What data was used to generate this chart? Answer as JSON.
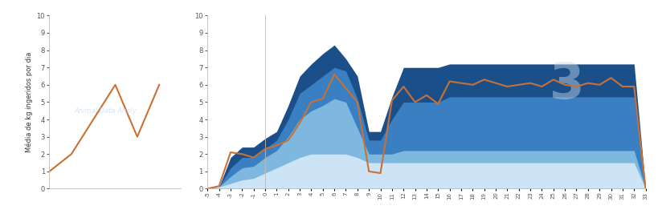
{
  "left_line_x": [
    -5,
    -4,
    -3,
    -2,
    -1,
    0
  ],
  "left_line_y": [
    1,
    2,
    4,
    6,
    3,
    6
  ],
  "right_x": [
    -5,
    -4,
    -3,
    -2,
    -1,
    0,
    1,
    2,
    3,
    4,
    5,
    6,
    7,
    8,
    9,
    10,
    11,
    12,
    13,
    14,
    15,
    16,
    17,
    18,
    19,
    20,
    21,
    22,
    23,
    24,
    25,
    26,
    27,
    28,
    29,
    30,
    31,
    32,
    33
  ],
  "orange_line": [
    0.0,
    0.15,
    2.1,
    2.0,
    1.8,
    2.3,
    2.5,
    2.8,
    3.8,
    5.0,
    5.2,
    6.6,
    5.8,
    5.0,
    1.0,
    0.9,
    5.1,
    5.9,
    5.0,
    5.4,
    4.9,
    6.2,
    6.1,
    6.0,
    6.3,
    6.1,
    5.9,
    6.0,
    6.1,
    5.9,
    6.3,
    6.0,
    5.9,
    6.1,
    6.0,
    6.4,
    5.9,
    5.9,
    0.0
  ],
  "band_lightest": [
    0.0,
    0.1,
    0.3,
    0.5,
    0.6,
    0.9,
    1.2,
    1.5,
    1.8,
    2.0,
    2.0,
    2.0,
    2.0,
    1.8,
    1.5,
    1.5,
    1.5,
    1.5,
    1.5,
    1.5,
    1.5,
    1.5,
    1.5,
    1.5,
    1.5,
    1.5,
    1.5,
    1.5,
    1.5,
    1.5,
    1.5,
    1.5,
    1.5,
    1.5,
    1.5,
    1.5,
    1.5,
    1.5,
    0.0
  ],
  "band_light": [
    0.0,
    0.1,
    0.7,
    1.2,
    1.3,
    1.8,
    2.2,
    3.0,
    4.0,
    4.5,
    4.8,
    5.2,
    5.0,
    3.5,
    2.0,
    2.0,
    2.0,
    2.2,
    2.2,
    2.2,
    2.2,
    2.2,
    2.2,
    2.2,
    2.2,
    2.2,
    2.2,
    2.2,
    2.2,
    2.2,
    2.2,
    2.2,
    2.2,
    2.2,
    2.2,
    2.2,
    2.2,
    2.2,
    0.0
  ],
  "band_mid": [
    0.0,
    0.1,
    1.2,
    1.8,
    1.8,
    2.3,
    2.8,
    4.0,
    5.5,
    6.0,
    6.5,
    7.0,
    6.8,
    5.2,
    2.8,
    2.8,
    4.0,
    5.0,
    5.0,
    5.0,
    5.0,
    5.3,
    5.3,
    5.3,
    5.3,
    5.3,
    5.3,
    5.3,
    5.3,
    5.3,
    5.3,
    5.3,
    5.3,
    5.3,
    5.3,
    5.3,
    5.3,
    5.3,
    0.0
  ],
  "band_dark": [
    0.0,
    0.1,
    1.8,
    2.4,
    2.4,
    2.9,
    3.3,
    4.8,
    6.5,
    7.2,
    7.8,
    8.3,
    7.5,
    6.5,
    3.3,
    3.3,
    5.3,
    7.0,
    7.0,
    7.0,
    7.0,
    7.2,
    7.2,
    7.2,
    7.2,
    7.2,
    7.2,
    7.2,
    7.2,
    7.2,
    7.2,
    7.2,
    7.2,
    7.2,
    7.2,
    7.2,
    7.2,
    7.2,
    0.0
  ],
  "color_lightest": "#cce4f5",
  "color_light": "#7fb8df",
  "color_mid": "#3a7fc1",
  "color_dark": "#1a4f8a",
  "color_orange": "#c87137",
  "ylabel": "Média de kg ingeridos por dia",
  "ylim": [
    0,
    10
  ],
  "bg_color": "#ffffff",
  "left_xlim": [
    -5,
    1
  ],
  "right_xlim": [
    -5,
    33
  ]
}
